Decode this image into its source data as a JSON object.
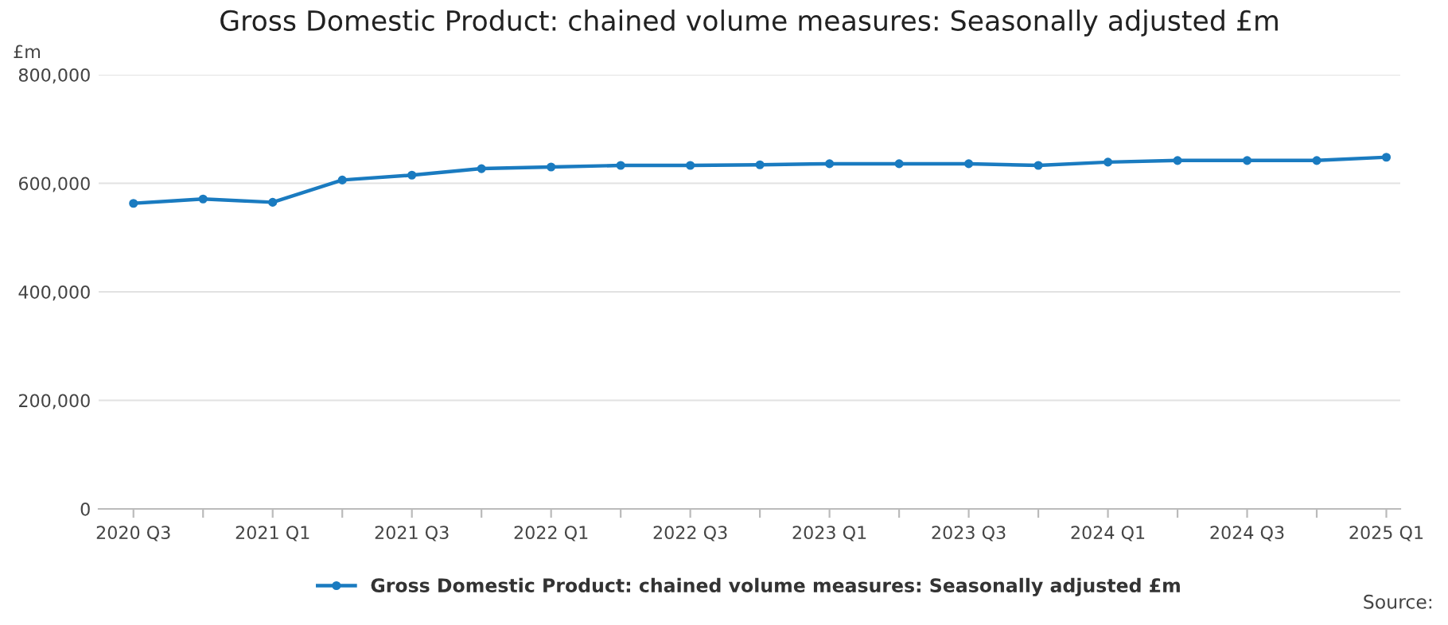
{
  "chart_data": {
    "type": "line",
    "title": "Gross Domestic Product: chained volume measures: Seasonally adjusted £m",
    "ylabel": "£m",
    "categories": [
      "2020 Q3",
      null,
      "2021 Q1",
      null,
      "2021 Q3",
      null,
      "2022 Q1",
      null,
      "2022 Q3",
      null,
      "2023 Q1",
      null,
      "2023 Q3",
      null,
      "2024 Q1",
      null,
      "2024 Q3",
      null,
      "2025 Q1"
    ],
    "series": [
      {
        "name": "Gross Domestic Product: chained volume measures: Seasonally adjusted £m",
        "color": "#1a7bc0",
        "values": [
          563000,
          571000,
          565000,
          606000,
          615000,
          627000,
          630000,
          633000,
          633000,
          634000,
          636000,
          636000,
          636000,
          633000,
          639000,
          642000,
          642000,
          642000,
          648000
        ]
      }
    ],
    "ylim": [
      0,
      800000
    ],
    "yticks": [
      {
        "value": 0,
        "label": "0"
      },
      {
        "value": 200000,
        "label": "200,000"
      },
      {
        "value": 400000,
        "label": "400,000"
      },
      {
        "value": 600000,
        "label": "600,000"
      },
      {
        "value": 800000,
        "label": "800,000"
      }
    ],
    "grid": "y",
    "legend": "bottom",
    "marker": "circle",
    "line_style": "solid",
    "annotations": [
      "Source:"
    ]
  }
}
